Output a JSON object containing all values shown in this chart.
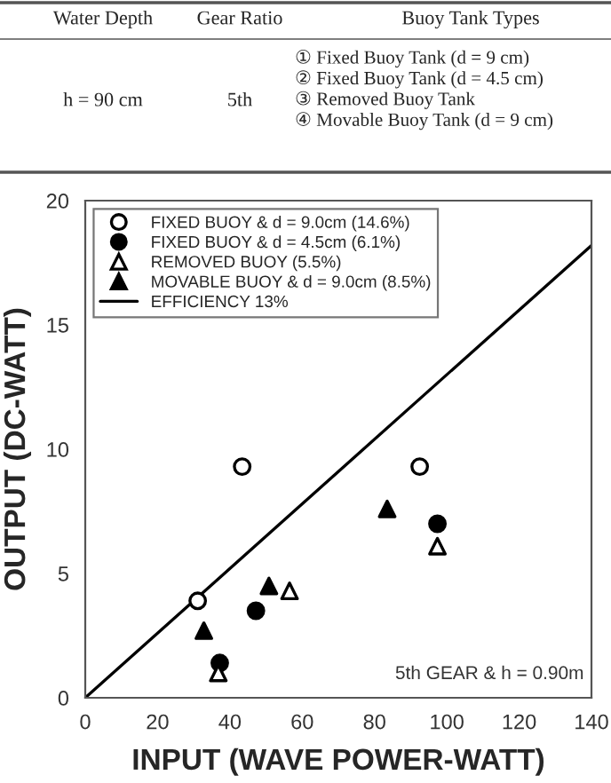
{
  "chart_data": {
    "type": "scatter",
    "xlabel": "INPUT (WAVE POWER-WATT)",
    "ylabel": "OUTPUT (DC-WATT)",
    "xlim": [
      0,
      140
    ],
    "xticks": [
      0,
      20,
      40,
      60,
      80,
      100,
      120,
      140
    ],
    "ylim": [
      0,
      20
    ],
    "yticks": [
      0,
      5,
      10,
      15,
      20
    ],
    "series": [
      {
        "name": "FIXED BUOY & d = 9.0cm (14.6%)",
        "color": "#ffffff",
        "marker": "circle",
        "x": [
          43.4,
          92.5,
          31.1
        ],
        "values": [
          9.3,
          9.3,
          3.9
        ]
      },
      {
        "name": "FIXED BUOY & d = 4.5cm (6.1%)",
        "color": "#000000",
        "marker": "circle",
        "x": [
          37.2,
          47.2,
          97.4
        ],
        "values": [
          1.4,
          3.5,
          7.0
        ]
      },
      {
        "name": "REMOVED BUOY (5.5%)",
        "color": "#ffffff",
        "marker": "triangle",
        "x": [
          36.8,
          56.5,
          97.4
        ],
        "values": [
          1.0,
          4.3,
          6.1
        ]
      },
      {
        "name": "MOVABLE BUOY & d = 9.0cm (8.5%)",
        "color": "#000000",
        "marker": "triangle",
        "x": [
          32.8,
          50.8,
          83.5
        ],
        "values": [
          2.7,
          4.5,
          7.6
        ]
      },
      {
        "name": "EFFICIENCY 13%",
        "type": "line",
        "color": "#000000",
        "x": [
          0,
          140
        ],
        "values": [
          0,
          18.2
        ]
      }
    ],
    "legend": "top left",
    "annotations": [
      "Water Depth",
      "Gear Ratio",
      "Buoy Tank Types",
      "h = 90 cm",
      "5th",
      "① Fixed Buoy Tank (d = 9 cm)",
      "② Fixed Buoy Tank (d = 4.5 cm)",
      "③ Removed Buoy Tank",
      "④ Movable Buoy Tank (d = 9 cm)",
      "5th GEAR & h = 0.90m"
    ]
  }
}
